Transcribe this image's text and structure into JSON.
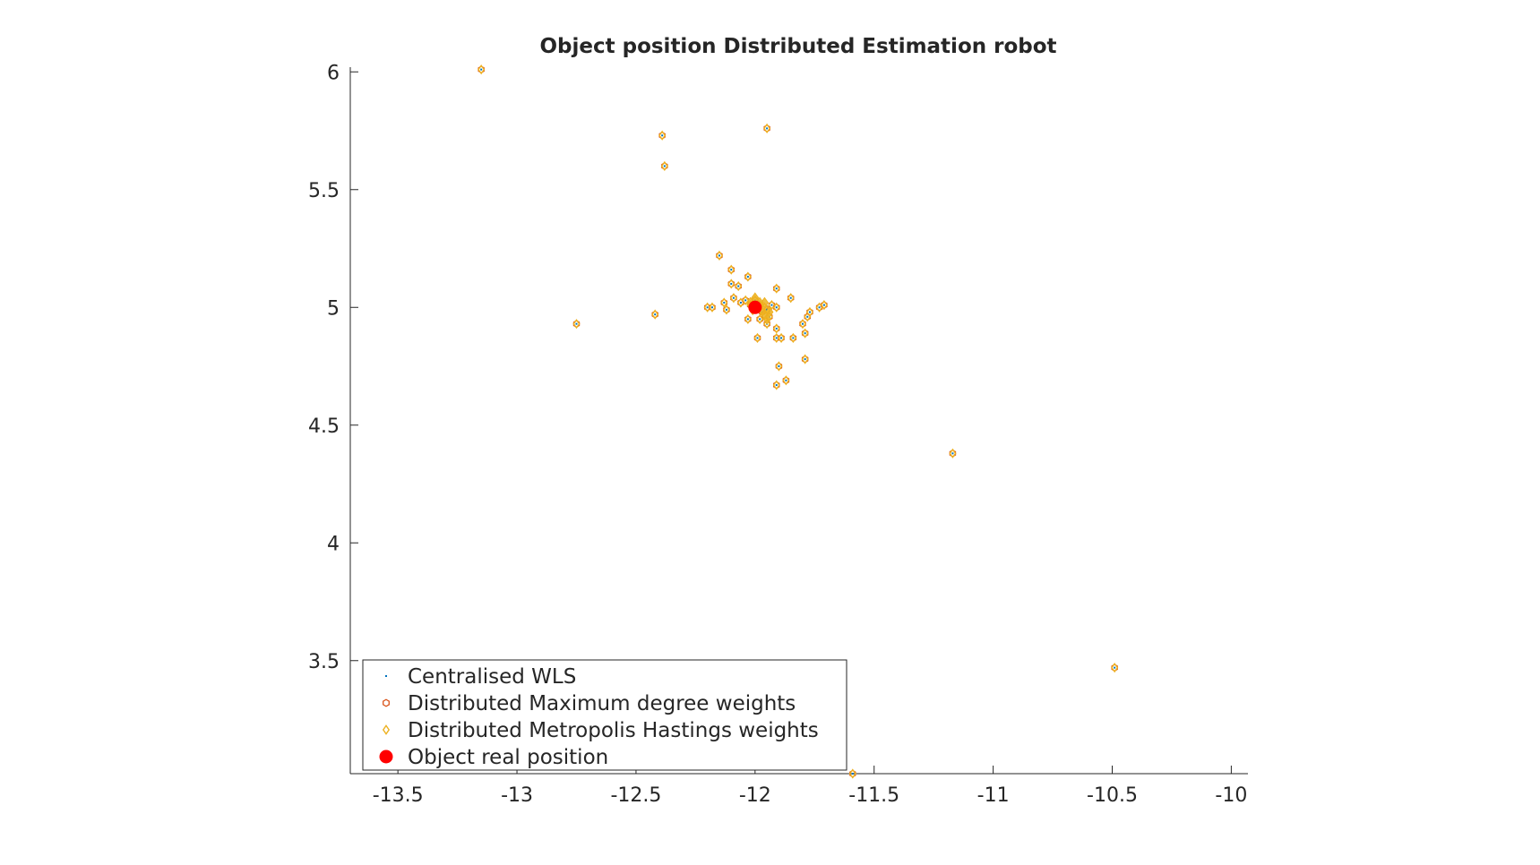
{
  "chart_data": {
    "type": "scatter",
    "title": "Object position Distributed Estimation robot",
    "xlabel": "",
    "ylabel": "",
    "xlim": [
      -13.7,
      -9.93
    ],
    "ylim": [
      3.02,
      6.02
    ],
    "xticks": [
      -13.5,
      -13,
      -12.5,
      -12,
      -11.5,
      -11,
      -10.5,
      -10
    ],
    "xtick_labels": [
      "-13.5",
      "-13",
      "-12.5",
      "-12",
      "-11.5",
      "-11",
      "-10.5",
      "-10"
    ],
    "yticks": [
      3.5,
      4,
      4.5,
      5,
      5.5,
      6
    ],
    "ytick_labels": [
      "3.5",
      "4",
      "4.5",
      "5",
      "5.5",
      "6"
    ],
    "grid": false,
    "legend_position": "bottom-left",
    "series": [
      {
        "name": "Centralised WLS",
        "marker": "point",
        "color": "#0072bd",
        "points": [
          [
            -13.15,
            6.01
          ],
          [
            -12.39,
            5.73
          ],
          [
            -12.38,
            5.6
          ],
          [
            -11.95,
            5.76
          ],
          [
            -12.75,
            4.93
          ],
          [
            -12.42,
            4.97
          ],
          [
            -12.15,
            5.22
          ],
          [
            -12.1,
            5.16
          ],
          [
            -12.03,
            5.13
          ],
          [
            -12.1,
            5.1
          ],
          [
            -12.07,
            5.09
          ],
          [
            -11.91,
            5.08
          ],
          [
            -11.85,
            5.04
          ],
          [
            -12.09,
            5.04
          ],
          [
            -12.2,
            5.0
          ],
          [
            -12.18,
            5.0
          ],
          [
            -12.13,
            5.02
          ],
          [
            -12.12,
            4.99
          ],
          [
            -12.06,
            5.02
          ],
          [
            -12.04,
            5.03
          ],
          [
            -12.02,
            5.01
          ],
          [
            -12.0,
            5.03
          ],
          [
            -11.98,
            5.01
          ],
          [
            -11.96,
            5.0
          ],
          [
            -11.95,
            4.99
          ],
          [
            -11.93,
            5.01
          ],
          [
            -11.91,
            5.0
          ],
          [
            -11.97,
            4.98
          ],
          [
            -11.94,
            4.96
          ],
          [
            -12.03,
            4.95
          ],
          [
            -11.98,
            4.95
          ],
          [
            -11.95,
            4.93
          ],
          [
            -11.91,
            4.91
          ],
          [
            -11.99,
            4.87
          ],
          [
            -11.91,
            4.87
          ],
          [
            -11.89,
            4.87
          ],
          [
            -11.84,
            4.87
          ],
          [
            -11.79,
            4.89
          ],
          [
            -11.78,
            4.96
          ],
          [
            -11.8,
            4.93
          ],
          [
            -11.77,
            4.98
          ],
          [
            -11.73,
            5.0
          ],
          [
            -11.71,
            5.01
          ],
          [
            -11.9,
            4.75
          ],
          [
            -11.79,
            4.78
          ],
          [
            -11.87,
            4.69
          ],
          [
            -11.91,
            4.67
          ],
          [
            -11.17,
            4.38
          ],
          [
            -10.49,
            3.47
          ],
          [
            -11.59,
            3.02
          ]
        ]
      },
      {
        "name": "Distributed Maximum degree weights",
        "marker": "hexagon",
        "color": "#d95319"
      },
      {
        "name": "Distributed Metropolis Hastings weights",
        "marker": "diamond",
        "color": "#edb120"
      },
      {
        "name": "Object real position",
        "marker": "filled-circle",
        "color": "#ff0000",
        "points": [
          [
            -12,
            5
          ]
        ]
      }
    ]
  }
}
